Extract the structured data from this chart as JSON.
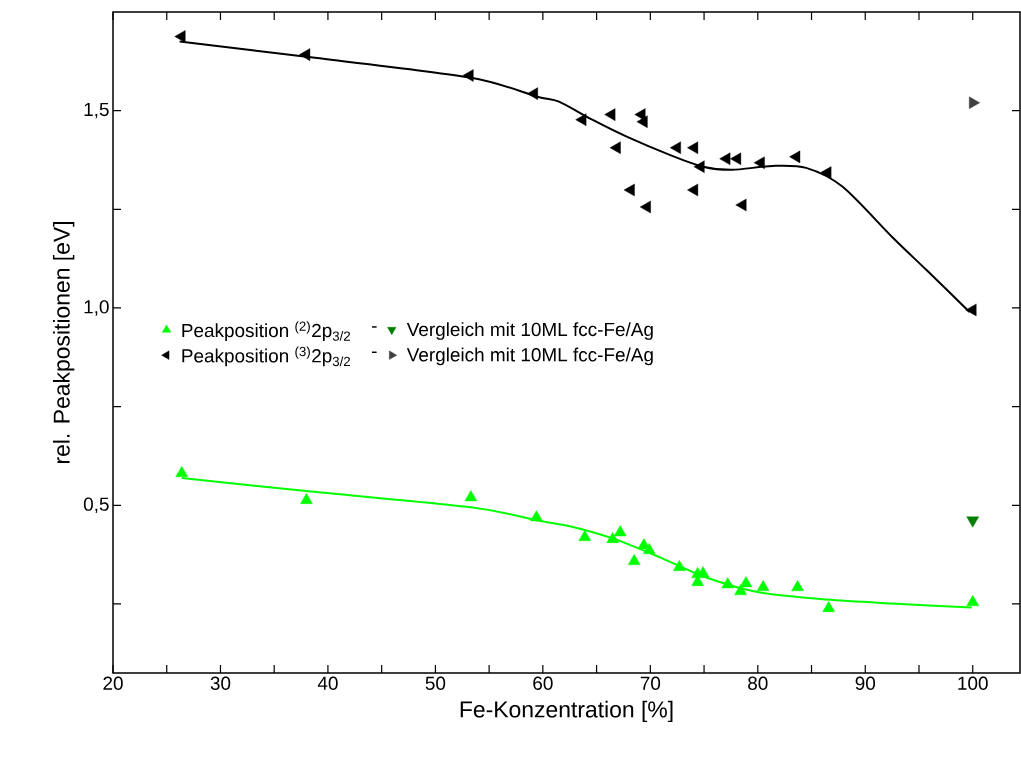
{
  "chart_data": {
    "type": "scatter",
    "xlabel": "Fe-Konzentration [%]",
    "ylabel": "rel. Peakpositionen [eV]",
    "xlim": [
      20,
      104.4
    ],
    "ylim": [
      0.075,
      1.75
    ],
    "xticks": [
      20,
      {
        "value": 25,
        "label": null
      },
      30,
      {
        "value": 35,
        "label": null
      },
      40,
      {
        "value": 45,
        "label": null
      },
      50,
      {
        "value": 55,
        "label": null
      },
      60,
      {
        "value": 65,
        "label": null
      },
      70,
      {
        "value": 75,
        "label": null
      },
      80,
      {
        "value": 85,
        "label": null
      },
      90,
      {
        "value": 95,
        "label": null
      },
      100
    ],
    "yticks": [
      {
        "value": 0.25,
        "label": null
      },
      {
        "value": 0.5,
        "label": "0,5"
      },
      {
        "value": 0.75,
        "label": null
      },
      {
        "value": 1.0,
        "label": "1,0"
      },
      {
        "value": 1.25,
        "label": null
      },
      {
        "value": 1.5,
        "label": "1,5"
      }
    ],
    "legend": "left",
    "grid": false,
    "annotations": [
      "-",
      "-"
    ],
    "series": [
      {
        "name": "Peakposition $^{(2)}$2p$_{3/2}$",
        "color": "#00ff00",
        "marker": "triangle",
        "x": [
          26.4,
          38.0,
          53.3,
          59.4,
          63.9,
          66.5,
          67.2,
          68.5,
          69.4,
          69.9,
          72.7,
          74.4,
          74.4,
          74.9,
          77.2,
          78.4,
          78.9,
          80.5,
          83.7,
          86.6,
          100
        ],
        "values": [
          0.581,
          0.513,
          0.52,
          0.469,
          0.419,
          0.414,
          0.431,
          0.358,
          0.398,
          0.386,
          0.343,
          0.305,
          0.325,
          0.327,
          0.299,
          0.282,
          0.302,
          0.292,
          0.292,
          0.239,
          0.254
        ]
      },
      {
        "name": "Peakposition $^{(3)}$2p$_{3/2}$",
        "color": "#000000",
        "marker": "triangle-left",
        "x": [
          26.4,
          38.0,
          53.2,
          59.2,
          63.7,
          66.4,
          69.2,
          69.4,
          66.9,
          72.5,
          74.1,
          74.7,
          77.1,
          78.1,
          80.3,
          83.6,
          86.5,
          68.2,
          69.7,
          74.1,
          78.6,
          100
        ],
        "values": [
          1.688,
          1.642,
          1.589,
          1.543,
          1.477,
          1.49,
          1.49,
          1.472,
          1.406,
          1.406,
          1.406,
          1.358,
          1.378,
          1.378,
          1.368,
          1.383,
          1.343,
          1.299,
          1.256,
          1.299,
          1.261,
          0.995
        ]
      },
      {
        "name": "Vergleich mit 10ML fcc-Fe/Ag",
        "color": "#007f00",
        "marker": "triangle-down",
        "x": [
          100
        ],
        "values": [
          0.462
        ]
      },
      {
        "name": "Vergleich mit 10ML fcc-Fe/Ag",
        "color": "#404040",
        "marker": "triangle-right",
        "x": [
          100
        ],
        "values": [
          1.52
        ]
      },
      {
        "type": "line",
        "color": "#00ff00",
        "marker": "none",
        "x": [
          26.4,
          38.0,
          53.3,
          59.4,
          62.5,
          66.5,
          70.9,
          75.2,
          80.2,
          86.4,
          92.5,
          99.9
        ],
        "values": [
          0.569,
          0.536,
          0.495,
          0.462,
          0.447,
          0.416,
          0.368,
          0.317,
          0.279,
          0.261,
          0.251,
          0.241
        ]
      },
      {
        "type": "line",
        "color": "#000000",
        "marker": "none",
        "x": [
          26.2,
          37.8,
          53.2,
          59.4,
          61.5,
          64.6,
          67.8,
          71.8,
          74.9,
          77.6,
          81.4,
          84.5,
          87.9,
          92.5,
          95.7,
          99.7
        ],
        "values": [
          1.675,
          1.637,
          1.584,
          1.536,
          1.523,
          1.477,
          1.434,
          1.388,
          1.358,
          1.35,
          1.36,
          1.355,
          1.307,
          1.18,
          1.096,
          0.99
        ]
      }
    ]
  }
}
